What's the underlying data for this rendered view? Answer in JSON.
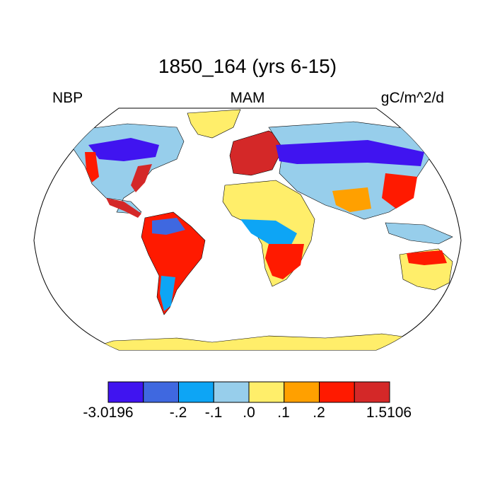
{
  "title": "1850_164 (yrs 6-15)",
  "left_label": "NBP",
  "center_label": "MAM",
  "right_label": "gC/m^2/d",
  "colorbar": {
    "colors": [
      "#4014F0",
      "#3F68E0",
      "#0DA5F5",
      "#97CEEB",
      "#FFEE6A",
      "#FFA000",
      "#FF1A00",
      "#D42828"
    ],
    "tick_labels": [
      "-3.0196",
      "-.2",
      "-.1",
      ".0",
      ".1",
      ".2",
      "1.5106"
    ]
  },
  "map_colors": {
    "land_default": "#FFEE6A",
    "ocean": "#ffffff",
    "outline": "#000000"
  }
}
